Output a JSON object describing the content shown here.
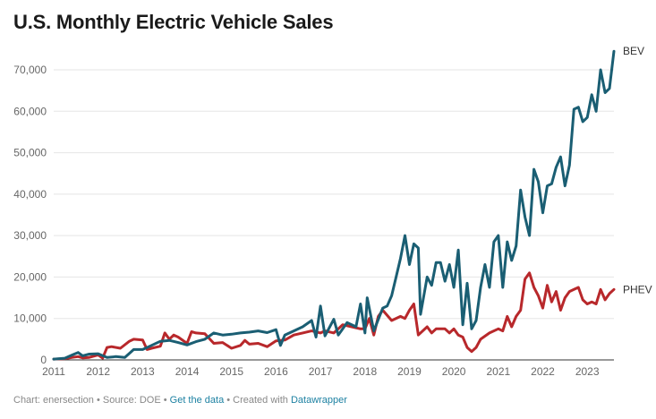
{
  "title": "U.S. Monthly Electric Vehicle Sales",
  "footer": {
    "chart_by": "Chart: enersection",
    "sep1": " • ",
    "source": "Source: DOE",
    "sep2": " • ",
    "get_data": "Get the data",
    "sep3": " • ",
    "created_with": "Created with ",
    "datawrapper": "Datawrapper"
  },
  "colors": {
    "BEV": "#1a5e73",
    "PHEV": "#b8282b",
    "grid": "#e5e5e5",
    "axis": "#333333"
  },
  "chart_data": {
    "type": "line",
    "title": "U.S. Monthly Electric Vehicle Sales",
    "xlabel": "",
    "ylabel": "",
    "xlim": [
      2011,
      2023
    ],
    "ylim": [
      0,
      75000
    ],
    "x_ticks": [
      "2011",
      "2012",
      "2013",
      "2014",
      "2015",
      "2016",
      "2017",
      "2018",
      "2019",
      "2020",
      "2021",
      "2022",
      "2023"
    ],
    "y_ticks": [
      "0",
      "10,000",
      "20,000",
      "30,000",
      "40,000",
      "50,000",
      "60,000",
      "70,000"
    ],
    "grid": true,
    "series": [
      {
        "name": "BEV",
        "points": [
          [
            2011.0,
            200
          ],
          [
            2011.25,
            400
          ],
          [
            2011.42,
            1200
          ],
          [
            2011.55,
            1800
          ],
          [
            2011.65,
            1000
          ],
          [
            2011.8,
            1400
          ],
          [
            2012.0,
            1500
          ],
          [
            2012.2,
            600
          ],
          [
            2012.4,
            800
          ],
          [
            2012.6,
            600
          ],
          [
            2012.8,
            2500
          ],
          [
            2013.0,
            2500
          ],
          [
            2013.2,
            3500
          ],
          [
            2013.4,
            4500
          ],
          [
            2013.6,
            4700
          ],
          [
            2013.8,
            4200
          ],
          [
            2014.0,
            3600
          ],
          [
            2014.2,
            4400
          ],
          [
            2014.4,
            5000
          ],
          [
            2014.6,
            6500
          ],
          [
            2014.8,
            6000
          ],
          [
            2015.0,
            6200
          ],
          [
            2015.2,
            6500
          ],
          [
            2015.4,
            6700
          ],
          [
            2015.6,
            7000
          ],
          [
            2015.8,
            6600
          ],
          [
            2016.0,
            7300
          ],
          [
            2016.1,
            3500
          ],
          [
            2016.2,
            6000
          ],
          [
            2016.4,
            7000
          ],
          [
            2016.6,
            8000
          ],
          [
            2016.8,
            9500
          ],
          [
            2016.9,
            5500
          ],
          [
            2017.0,
            13000
          ],
          [
            2017.1,
            5800
          ],
          [
            2017.3,
            9800
          ],
          [
            2017.4,
            6000
          ],
          [
            2017.6,
            9000
          ],
          [
            2017.8,
            8000
          ],
          [
            2017.9,
            13500
          ],
          [
            2018.0,
            6500
          ],
          [
            2018.05,
            15000
          ],
          [
            2018.2,
            7000
          ],
          [
            2018.4,
            12500
          ],
          [
            2018.5,
            13000
          ],
          [
            2018.6,
            15500
          ],
          [
            2018.7,
            20000
          ],
          [
            2018.8,
            24500
          ],
          [
            2018.9,
            30000
          ],
          [
            2019.0,
            23000
          ],
          [
            2019.1,
            28000
          ],
          [
            2019.2,
            27000
          ],
          [
            2019.25,
            11000
          ],
          [
            2019.4,
            20000
          ],
          [
            2019.5,
            18000
          ],
          [
            2019.6,
            23500
          ],
          [
            2019.7,
            23500
          ],
          [
            2019.8,
            19000
          ],
          [
            2019.9,
            23000
          ],
          [
            2020.0,
            17500
          ],
          [
            2020.1,
            26500
          ],
          [
            2020.2,
            8500
          ],
          [
            2020.3,
            18500
          ],
          [
            2020.4,
            7500
          ],
          [
            2020.5,
            9500
          ],
          [
            2020.6,
            17500
          ],
          [
            2020.7,
            23000
          ],
          [
            2020.8,
            17500
          ],
          [
            2020.9,
            28500
          ],
          [
            2021.0,
            30000
          ],
          [
            2021.1,
            17500
          ],
          [
            2021.2,
            28500
          ],
          [
            2021.3,
            24000
          ],
          [
            2021.4,
            27500
          ],
          [
            2021.5,
            41000
          ],
          [
            2021.6,
            34500
          ],
          [
            2021.7,
            30000
          ],
          [
            2021.8,
            46000
          ],
          [
            2021.9,
            43000
          ],
          [
            2022.0,
            35500
          ],
          [
            2022.1,
            42000
          ],
          [
            2022.2,
            42500
          ],
          [
            2022.3,
            46500
          ],
          [
            2022.4,
            49000
          ],
          [
            2022.5,
            42000
          ],
          [
            2022.6,
            47000
          ],
          [
            2022.7,
            60500
          ],
          [
            2022.8,
            61000
          ],
          [
            2022.9,
            57500
          ],
          [
            2023.0,
            58500
          ],
          [
            2023.1,
            64000
          ],
          [
            2023.2,
            60000
          ],
          [
            2023.3,
            70000
          ],
          [
            2023.4,
            64500
          ],
          [
            2023.5,
            65500
          ],
          [
            2023.6,
            74500
          ]
        ]
      },
      {
        "name": "PHEV",
        "points": [
          [
            2011.0,
            200
          ],
          [
            2011.25,
            300
          ],
          [
            2011.42,
            600
          ],
          [
            2011.55,
            800
          ],
          [
            2011.65,
            500
          ],
          [
            2011.8,
            600
          ],
          [
            2012.0,
            1200
          ],
          [
            2012.1,
            400
          ],
          [
            2012.2,
            3000
          ],
          [
            2012.3,
            3200
          ],
          [
            2012.5,
            2800
          ],
          [
            2012.7,
            4500
          ],
          [
            2012.8,
            5000
          ],
          [
            2013.0,
            4800
          ],
          [
            2013.1,
            2500
          ],
          [
            2013.2,
            2800
          ],
          [
            2013.4,
            3300
          ],
          [
            2013.5,
            6500
          ],
          [
            2013.6,
            5000
          ],
          [
            2013.7,
            6000
          ],
          [
            2013.8,
            5500
          ],
          [
            2014.0,
            4000
          ],
          [
            2014.1,
            6800
          ],
          [
            2014.2,
            6500
          ],
          [
            2014.4,
            6300
          ],
          [
            2014.6,
            4000
          ],
          [
            2014.8,
            4200
          ],
          [
            2015.0,
            2800
          ],
          [
            2015.2,
            3500
          ],
          [
            2015.3,
            4700
          ],
          [
            2015.4,
            3800
          ],
          [
            2015.6,
            4000
          ],
          [
            2015.8,
            3200
          ],
          [
            2016.0,
            4600
          ],
          [
            2016.2,
            4800
          ],
          [
            2016.4,
            6000
          ],
          [
            2016.6,
            6500
          ],
          [
            2016.8,
            7000
          ],
          [
            2017.0,
            6500
          ],
          [
            2017.1,
            7000
          ],
          [
            2017.3,
            6500
          ],
          [
            2017.5,
            8500
          ],
          [
            2017.7,
            8000
          ],
          [
            2017.9,
            7500
          ],
          [
            2018.0,
            7500
          ],
          [
            2018.1,
            10000
          ],
          [
            2018.2,
            6000
          ],
          [
            2018.3,
            10500
          ],
          [
            2018.4,
            12000
          ],
          [
            2018.6,
            9500
          ],
          [
            2018.8,
            10500
          ],
          [
            2018.9,
            10000
          ],
          [
            2019.0,
            12000
          ],
          [
            2019.1,
            13500
          ],
          [
            2019.2,
            6000
          ],
          [
            2019.4,
            8000
          ],
          [
            2019.5,
            6500
          ],
          [
            2019.6,
            7500
          ],
          [
            2019.8,
            7500
          ],
          [
            2019.9,
            6500
          ],
          [
            2020.0,
            7500
          ],
          [
            2020.1,
            6000
          ],
          [
            2020.2,
            5500
          ],
          [
            2020.3,
            3000
          ],
          [
            2020.4,
            2000
          ],
          [
            2020.5,
            3000
          ],
          [
            2020.6,
            5000
          ],
          [
            2020.8,
            6500
          ],
          [
            2021.0,
            7500
          ],
          [
            2021.1,
            7000
          ],
          [
            2021.2,
            10500
          ],
          [
            2021.3,
            8000
          ],
          [
            2021.4,
            10500
          ],
          [
            2021.5,
            12000
          ],
          [
            2021.6,
            19500
          ],
          [
            2021.7,
            21000
          ],
          [
            2021.8,
            17500
          ],
          [
            2021.9,
            15500
          ],
          [
            2022.0,
            12500
          ],
          [
            2022.1,
            18000
          ],
          [
            2022.2,
            14000
          ],
          [
            2022.3,
            16500
          ],
          [
            2022.4,
            12000
          ],
          [
            2022.5,
            15000
          ],
          [
            2022.6,
            16500
          ],
          [
            2022.7,
            17000
          ],
          [
            2022.8,
            17500
          ],
          [
            2022.9,
            14500
          ],
          [
            2023.0,
            13500
          ],
          [
            2023.1,
            14000
          ],
          [
            2023.2,
            13500
          ],
          [
            2023.3,
            17000
          ],
          [
            2023.4,
            14500
          ],
          [
            2023.5,
            16000
          ],
          [
            2023.6,
            17000
          ]
        ]
      }
    ],
    "series_labels": [
      "BEV",
      "PHEV"
    ]
  }
}
